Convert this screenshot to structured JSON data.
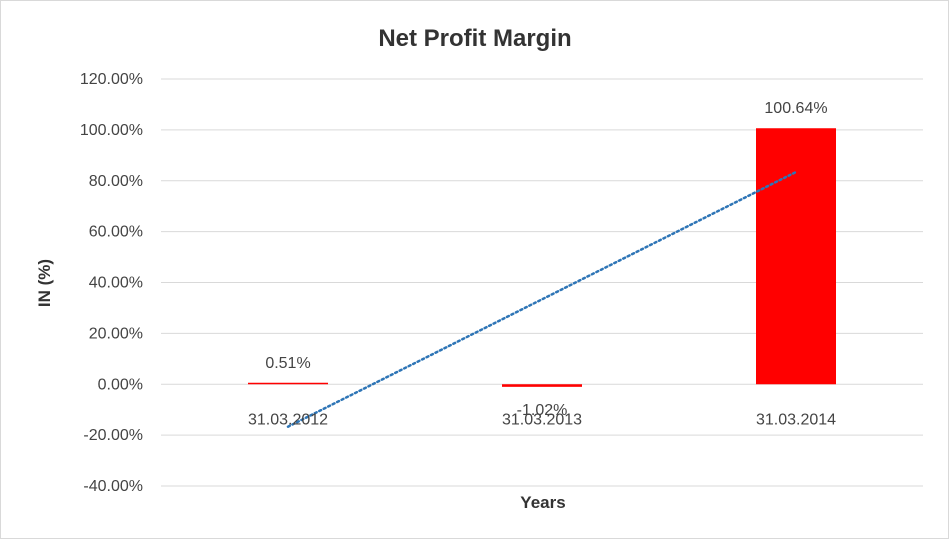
{
  "chart_data": {
    "type": "bar",
    "title": "Net Profit Margin",
    "xlabel": "Years",
    "ylabel": "IN (%)",
    "categories": [
      "31.03.2012",
      "31.03.2013",
      "31.03.2014"
    ],
    "series": [
      {
        "values": [
          0.51,
          -1.02,
          100.64
        ],
        "data_labels": [
          "0.51%",
          "-1.02%",
          "100.64%"
        ],
        "color": "#ff0000"
      }
    ],
    "trendline": {
      "type": "linear",
      "style": "dotted",
      "color": "#2e75b6"
    },
    "ylim": [
      -40,
      120
    ],
    "yticks": [
      120,
      100,
      80,
      60,
      40,
      20,
      0,
      -20,
      -40
    ],
    "ytick_labels": [
      "120.00%",
      "100.00%",
      "80.00%",
      "60.00%",
      "40.00%",
      "20.00%",
      "0.00%",
      "-20.00%",
      "-40.00%"
    ],
    "grid": true,
    "legend": "none"
  }
}
